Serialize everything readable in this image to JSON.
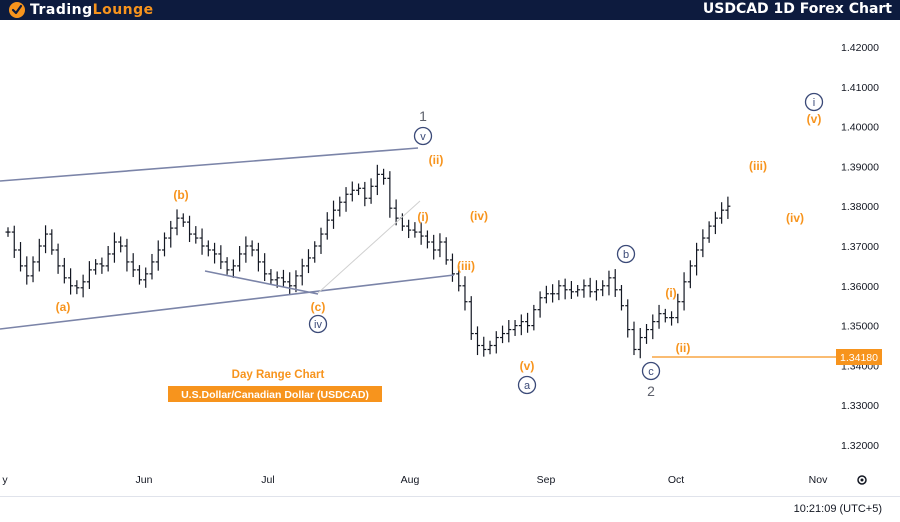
{
  "header": {
    "logo_prefix": "Trading",
    "logo_suffix": "Lounge",
    "title": "USDCAD 1D Forex Chart"
  },
  "footer": {
    "time": "10:21:09 (UTC+5)"
  },
  "colors": {
    "header_bg": "#0d1b3e",
    "orange": "#f7941d",
    "navy": "#3b4a78",
    "bar": "#131722",
    "grid_text": "#131722"
  },
  "icons": {
    "settings": "gear-icon",
    "logo": "trading-lounge-logo-icon"
  },
  "chart_data": {
    "type": "bar",
    "title": "Day Range Chart",
    "subtitle": "U.S.Dollar/Canadian Dollar (USDCAD)",
    "ylim": [
      1.316,
      1.4255
    ],
    "y_ticks": [
      "1.42000",
      "1.41000",
      "1.40000",
      "1.39000",
      "1.38000",
      "1.37000",
      "1.36000",
      "1.35000",
      "1.34000",
      "1.33000",
      "1.32000"
    ],
    "x_ticks": [
      "y",
      "Jun",
      "Jul",
      "Aug",
      "Sep",
      "Oct",
      "Nov"
    ],
    "current_price": {
      "value": 1.3418,
      "label": "1.34180"
    },
    "grid": false,
    "series": [
      {
        "values": [
          1.3735,
          1.369,
          1.365,
          1.3625,
          1.366,
          1.37,
          1.373,
          1.369,
          1.365,
          1.362,
          1.36,
          1.3595,
          1.361,
          1.364,
          1.3655,
          1.365,
          1.368,
          1.371,
          1.37,
          1.366,
          1.364,
          1.3615,
          1.363,
          1.366,
          1.369,
          1.372,
          1.3745,
          1.377,
          1.376,
          1.373,
          1.372,
          1.37,
          1.369,
          1.368,
          1.366,
          1.364,
          1.365,
          1.368,
          1.37,
          1.369,
          1.366,
          1.363,
          1.3615,
          1.362,
          1.361,
          1.36,
          1.3625,
          1.365,
          1.367,
          1.37,
          1.373,
          1.3765,
          1.379,
          1.381,
          1.383,
          1.384,
          1.3845,
          1.382,
          1.385,
          1.388,
          1.387,
          1.3795,
          1.377,
          1.375,
          1.374,
          1.3735,
          1.3725,
          1.371,
          1.369,
          1.371,
          1.3665,
          1.363,
          1.36,
          1.356,
          1.348,
          1.345,
          1.344,
          1.345,
          1.347,
          1.348,
          1.349,
          1.35,
          1.351,
          1.35,
          1.354,
          1.357,
          1.358,
          1.358,
          1.36,
          1.359,
          1.3585,
          1.359,
          1.36,
          1.3585,
          1.359,
          1.36,
          1.362,
          1.359,
          1.355,
          1.349,
          1.344,
          1.347,
          1.349,
          1.351,
          1.353,
          1.352,
          1.352,
          1.356,
          1.361,
          1.365,
          1.369,
          1.372,
          1.375,
          1.377,
          1.379,
          1.38
        ]
      }
    ],
    "wave_labels": [
      {
        "text": "(a)",
        "style": "orange"
      },
      {
        "text": "(b)",
        "style": "orange"
      },
      {
        "text": "(c)",
        "style": "orange"
      },
      {
        "text": "iv",
        "style": "navy-circle"
      },
      {
        "text": "1",
        "style": "gray"
      },
      {
        "text": "v",
        "style": "navy-circle"
      },
      {
        "text": "(ii)",
        "style": "orange"
      },
      {
        "text": "(i)",
        "style": "orange"
      },
      {
        "text": "(iv)",
        "style": "orange"
      },
      {
        "text": "(iii)",
        "style": "orange"
      },
      {
        "text": "(v)",
        "style": "orange"
      },
      {
        "text": "a",
        "style": "navy-circle"
      },
      {
        "text": "b",
        "style": "navy-circle"
      },
      {
        "text": "c",
        "style": "navy-circle"
      },
      {
        "text": "2",
        "style": "gray"
      },
      {
        "text": "(i)",
        "style": "orange"
      },
      {
        "text": "(ii)",
        "style": "orange"
      },
      {
        "text": "(iii)",
        "style": "orange"
      },
      {
        "text": "(iv)",
        "style": "orange"
      },
      {
        "text": "i",
        "style": "navy-circle"
      },
      {
        "text": "(v)",
        "style": "orange"
      }
    ]
  }
}
